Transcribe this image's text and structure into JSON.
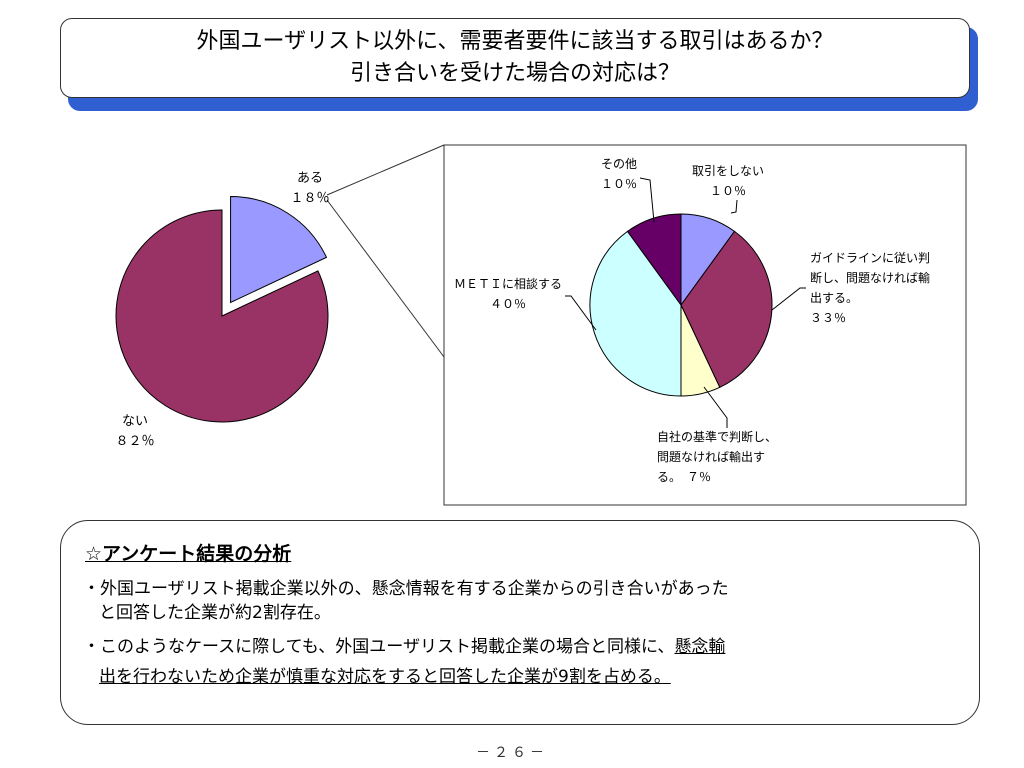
{
  "title": {
    "line1": "外国ユーザリスト以外に、需要者要件に該当する取引はあるか？",
    "line2": "引き合いを受けた場合の対応は？"
  },
  "chart_data": [
    {
      "type": "pie",
      "categories": [
        "ある",
        "ない"
      ],
      "values": [
        18,
        82
      ],
      "value_labels": [
        "１８％",
        "８２％"
      ],
      "colors": [
        "#9999ff",
        "#993366"
      ],
      "exploded": [
        "ある"
      ]
    },
    {
      "type": "pie",
      "categories": [
        "取引をしない",
        "ガイドラインに従い判断し、問題なければ輸出する。",
        "自社の基準で判断し、問題なければ輸出する。",
        "ＭＥＴＩに相談する",
        "その他"
      ],
      "label_lines": [
        [
          "取引をしない",
          "１０％"
        ],
        [
          "ガイドラインに従い判",
          "断し、問題なければ輸",
          "出する。",
          "３３％"
        ],
        [
          "自社の基準で判断し、",
          "問題なければ輸出す",
          "る。　７％"
        ],
        [
          "ＭＥＴＩに相談する",
          "４０％"
        ],
        [
          "その他",
          "１０％"
        ]
      ],
      "values": [
        10,
        33,
        7,
        40,
        10
      ],
      "colors": [
        "#9999ff",
        "#993366",
        "#ffffcc",
        "#ccffff",
        "#660066"
      ]
    }
  ],
  "analysis": {
    "heading": "☆アンケート結果の分析",
    "bullet1_line1": "・外国ユーザリスト掲載企業以外の、懸念情報を有する企業からの引き合いがあった",
    "bullet1_line2": "と回答した企業が約2割存在。",
    "bullet2_line1_plain": "・このようなケースに際しても、外国ユーザリスト掲載企業の場合と同様に、",
    "bullet2_line1_underlined": "懸念輸",
    "bullet2_line2_underlined": "出を行わないため企業が慎重な対応をすると回答した企業が9割を占める。"
  },
  "page_number": "－２６－"
}
